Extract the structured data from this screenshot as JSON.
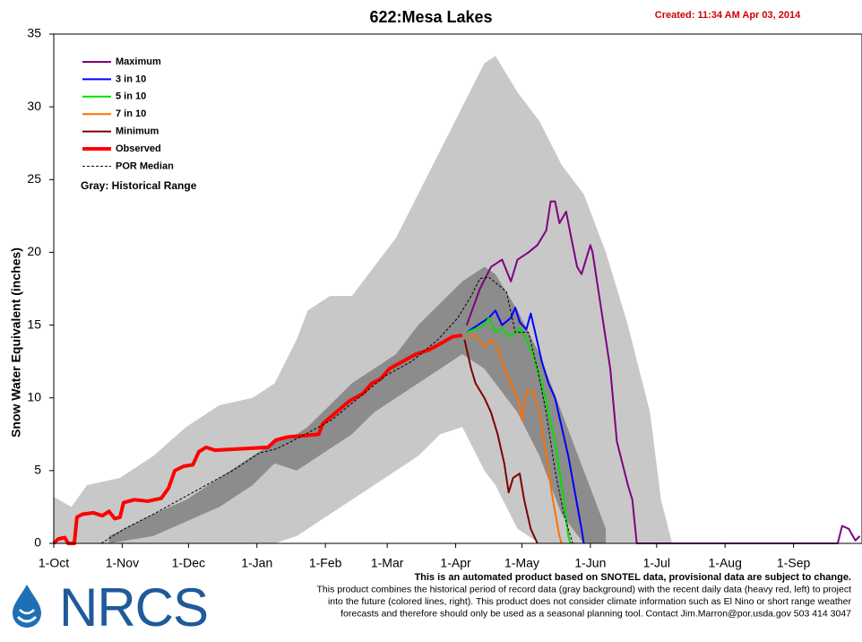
{
  "chart_data": {
    "type": "line",
    "title": "622:Mesa Lakes",
    "created": "Created: 11:34 AM Apr 03, 2014",
    "y_label": "Snow Water Equivalent (inches)",
    "range_note": "Gray: Historical Range",
    "xlim": [
      0,
      366
    ],
    "ylim": [
      0,
      35
    ],
    "xticks": [
      {
        "value": 0,
        "label": "1-Oct"
      },
      {
        "value": 31,
        "label": "1-Nov"
      },
      {
        "value": 61,
        "label": "1-Dec"
      },
      {
        "value": 92,
        "label": "1-Jan"
      },
      {
        "value": 123,
        "label": "1-Feb"
      },
      {
        "value": 151,
        "label": "1-Mar"
      },
      {
        "value": 182,
        "label": "1-Apr"
      },
      {
        "value": 212,
        "label": "1-May"
      },
      {
        "value": 243,
        "label": "1-Jun"
      },
      {
        "value": 273,
        "label": "1-Jul"
      },
      {
        "value": 304,
        "label": "1-Aug"
      },
      {
        "value": 335,
        "label": "1-Sep"
      }
    ],
    "yticks": [
      0,
      5,
      10,
      15,
      20,
      25,
      30,
      35
    ],
    "grid": false,
    "legend": "top-left",
    "bands": [
      {
        "color": "#c8c8c8",
        "x": [
          0,
          8,
          15,
          30,
          45,
          60,
          75,
          90,
          100,
          110,
          115,
          125,
          135,
          145,
          155,
          165,
          175,
          185,
          195,
          200,
          210,
          220,
          230,
          240,
          250,
          260,
          270,
          275,
          280
        ],
        "upper": [
          3.2,
          2.5,
          4,
          4.5,
          6,
          8,
          9.5,
          10,
          11,
          14,
          16,
          17,
          17,
          19,
          21,
          24,
          27,
          30,
          33,
          33.5,
          31,
          29,
          26,
          24,
          20,
          15,
          9,
          3,
          0
        ],
        "lower": [
          0,
          0,
          0,
          0,
          0,
          0,
          0,
          0,
          0,
          0.5,
          1,
          2,
          3,
          4,
          5,
          6,
          7.5,
          8,
          5,
          4,
          1,
          0,
          0,
          0,
          0,
          0,
          0,
          0,
          0
        ]
      },
      {
        "color": "#8c8c8c",
        "x": [
          25,
          45,
          60,
          75,
          90,
          100,
          110,
          115,
          125,
          135,
          145,
          155,
          165,
          175,
          185,
          195,
          200,
          210,
          220,
          230,
          240,
          250
        ],
        "upper": [
          0.5,
          2,
          3,
          4.5,
          6,
          7,
          7.5,
          8,
          9.5,
          11,
          12,
          13,
          15,
          16.5,
          18,
          19,
          18.5,
          16,
          13,
          9,
          5,
          1
        ],
        "lower": [
          0,
          0.5,
          1.5,
          2.5,
          4,
          5.5,
          5,
          5.5,
          6.5,
          7.5,
          9,
          10,
          11,
          12,
          13,
          12,
          11,
          9,
          6,
          2,
          0,
          0
        ]
      }
    ],
    "series": [
      {
        "name": "Maximum",
        "color": "#800080",
        "style": "thin",
        "x": [
          187,
          193,
          198,
          203,
          207,
          210,
          215,
          219,
          223,
          225,
          227,
          229,
          232,
          235,
          237,
          239,
          243,
          244,
          247,
          249,
          252,
          255,
          260,
          262,
          264,
          355,
          357,
          360,
          363,
          365
        ],
        "values": [
          15,
          17.5,
          19,
          19.5,
          18,
          19.5,
          20,
          20.5,
          21.5,
          23.5,
          23.5,
          22,
          22.8,
          20.5,
          19,
          18.5,
          20.5,
          20,
          17,
          15,
          12,
          7,
          4,
          3,
          0,
          0,
          1.2,
          1,
          0.2,
          0.5
        ]
      },
      {
        "name": "3 in 10",
        "color": "#0000ff",
        "style": "thin",
        "x": [
          187,
          197,
          200,
          203,
          207,
          209,
          211,
          214,
          216,
          218,
          221,
          224,
          227,
          230,
          233,
          236,
          239,
          240
        ],
        "values": [
          14.5,
          15.5,
          16,
          15,
          15.5,
          16.2,
          15.2,
          14.7,
          15.8,
          14.5,
          12.5,
          11,
          10,
          8,
          6,
          3.5,
          1,
          0
        ]
      },
      {
        "name": "5 in 10",
        "color": "#00e000",
        "style": "thin",
        "x": [
          187,
          195,
          197,
          200,
          203,
          206,
          209,
          211,
          214,
          217,
          221,
          224,
          227,
          229,
          231,
          233,
          234
        ],
        "values": [
          14.5,
          15,
          15.5,
          14.5,
          14.8,
          14.2,
          14.5,
          14.8,
          14,
          13,
          11,
          9,
          7,
          5,
          3,
          0.5,
          0
        ]
      },
      {
        "name": "7 in 10",
        "color": "#ff7000",
        "style": "thin",
        "x": [
          187,
          191,
          195,
          198,
          201,
          204,
          207,
          210,
          212,
          214,
          217,
          220,
          223,
          226,
          229,
          230
        ],
        "values": [
          14.2,
          14.3,
          13.5,
          14,
          13.5,
          12,
          11,
          10,
          8.5,
          10.5,
          10.5,
          9,
          6,
          3,
          0.5,
          0
        ]
      },
      {
        "name": "Minimum",
        "color": "#800000",
        "style": "thin",
        "x": [
          186,
          189,
          191,
          195,
          198,
          201,
          204,
          206,
          208,
          211,
          213,
          216,
          219
        ],
        "values": [
          14,
          12,
          11,
          10,
          9,
          7.5,
          5.5,
          3.5,
          4.5,
          4.8,
          3,
          1,
          0
        ]
      },
      {
        "name": "Observed",
        "color": "#ff0000",
        "style": "thick",
        "x": [
          0,
          2,
          5,
          6.5,
          9.3,
          10.5,
          13,
          18,
          22,
          25,
          27.6,
          30,
          31.6,
          36.5,
          42.6,
          48.7,
          52,
          54.8,
          58.8,
          63,
          65.7,
          69,
          73,
          85,
          97,
          100.6,
          105.5,
          113.6,
          120,
          121.7,
          127.8,
          134,
          140,
          144,
          148,
          152,
          158,
          164,
          170,
          176,
          180.5,
          185
        ],
        "values": [
          0,
          0.3,
          0.4,
          0,
          0,
          1.8,
          2,
          2.1,
          1.9,
          2.2,
          1.7,
          1.8,
          2.8,
          3,
          2.9,
          3.1,
          3.8,
          5,
          5.3,
          5.4,
          6.3,
          6.6,
          6.4,
          6.5,
          6.6,
          7.1,
          7.3,
          7.4,
          7.5,
          8.2,
          9,
          9.8,
          10.3,
          11,
          11.3,
          12,
          12.5,
          13,
          13.3,
          13.8,
          14.2,
          14.3
        ]
      },
      {
        "name": "POR Median",
        "color": "#000000",
        "style": "dashed",
        "x": [
          21.5,
          32,
          45,
          57,
          69,
          81,
          93,
          101,
          114,
          126,
          138,
          150,
          162,
          174,
          183,
          189,
          193,
          197,
          201,
          205,
          209,
          215,
          219,
          223,
          227,
          231,
          235
        ],
        "values": [
          0,
          1,
          2,
          3,
          4,
          5,
          6.2,
          6.5,
          7.5,
          8.5,
          10,
          11.5,
          12.5,
          14,
          15.5,
          17,
          18.2,
          18.3,
          17.8,
          17.3,
          14.5,
          14.5,
          12,
          9,
          5,
          2,
          0
        ]
      }
    ],
    "footnote": [
      "This is an automated product based on SNOTEL data, provisional data are subject to change.",
      "This product combines the historical period of record data (gray background) with the recent daily data (heavy red, left) to project",
      "into the future (colored lines, right). This product does not consider climate information such as El Nino or short range weather",
      "forecasts and therefore should only be used as a seasonal planning tool. Contact Jim.Marron@por.usda.gov 503 414 3047"
    ],
    "logo_text": "NRCS"
  }
}
